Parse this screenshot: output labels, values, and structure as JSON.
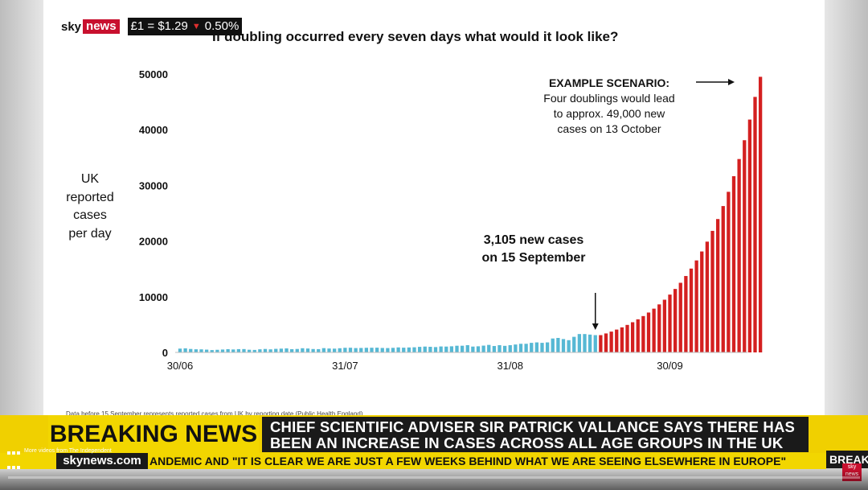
{
  "ticker": {
    "brand_sky": "sky",
    "brand_news": "news",
    "fx_text": "£1 = $1.29",
    "fx_change": "0.50%",
    "fx_arrow": "▼"
  },
  "chart_data": {
    "type": "bar",
    "title": "If doubling occurred every seven days what would it look like?",
    "ylabel_lines": [
      "UK",
      "reported",
      "cases",
      "per day"
    ],
    "yticks": [
      0,
      10000,
      20000,
      30000,
      40000,
      50000
    ],
    "xticks": [
      "30/06",
      "31/07",
      "31/08",
      "30/09"
    ],
    "xtick_index": [
      0,
      31,
      62,
      92
    ],
    "ylim": [
      0,
      50000
    ],
    "series": [
      {
        "name": "reported",
        "color": "#56b8d4",
        "start_index": 0,
        "values": [
          681,
          730,
          620,
          560,
          550,
          500,
          420,
          470,
          520,
          580,
          530,
          590,
          600,
          480,
          450,
          560,
          620,
          550,
          640,
          680,
          720,
          580,
          620,
          750,
          700,
          610,
          590,
          770,
          700,
          680,
          750,
          830,
          840,
          780,
          800,
          830,
          840,
          850,
          800,
          780,
          820,
          900,
          850,
          890,
          920,
          1000,
          1050,
          1010,
          960,
          1070,
          1050,
          1100,
          1200,
          1200,
          1300,
          1050,
          1100,
          1220,
          1350,
          1150,
          1300,
          1180,
          1300,
          1420,
          1550,
          1550,
          1720,
          1800,
          1720,
          1800,
          2500,
          2600,
          2400,
          2200,
          2800,
          3300,
          3300,
          3200,
          3105
        ]
      },
      {
        "name": "projected",
        "color": "#d42020",
        "start_index": 79,
        "values": [
          3105,
          3407,
          3739,
          4103,
          4502,
          4940,
          5421,
          5948,
          6527,
          7162,
          7859,
          8624,
          9464,
          10385,
          11396,
          12505,
          13722,
          15057,
          16522,
          18130,
          19895,
          21831,
          23956,
          26287,
          28845,
          31652,
          34733,
          38113,
          41822,
          45892,
          49500
        ]
      }
    ]
  },
  "annotations": {
    "scenario_heading": "EXAMPLE SCENARIO:",
    "scenario_lines": [
      "Four doublings would lead",
      "to approx. 49,000 new",
      "cases on 13 October"
    ],
    "marker_lines": [
      "3,105 new cases",
      "on 15 September"
    ]
  },
  "footnote": "Data before 15 September represents reported cases from UK by reporting date (Public Health England)",
  "breaking": {
    "label": "BREAKING NEWS",
    "headline_lines": [
      "CHIEF SCIENTIFIC ADVISER SIR PATRICK VALLANCE SAYS THERE HAS",
      "BEEN AN INCREASE IN CASES ACROSS ALL AGE GROUPS IN THE UK"
    ],
    "right_label": "BREAK",
    "url": "skynews.com",
    "crawl": "ANDEMIC AND \"IT IS CLEAR WE ARE JUST A FEW WEEKS BEHIND WHAT WE ARE SEEING ELSEWHERE IN EUROPE\""
  },
  "overlay": {
    "more_videos": "More videos from The Independent",
    "mini_logo": "sky news"
  },
  "player": {
    "progress_fraction": 0.0
  }
}
